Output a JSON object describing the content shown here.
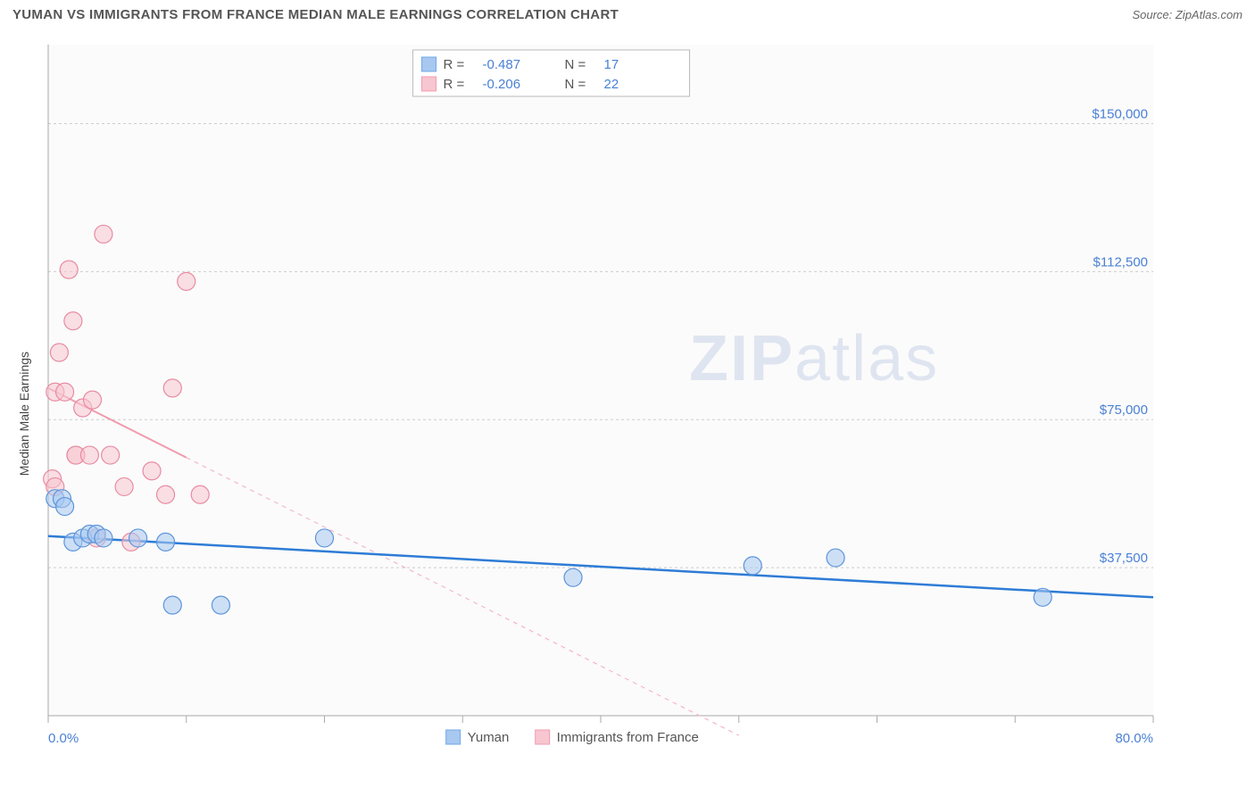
{
  "title": "YUMAN VS IMMIGRANTS FROM FRANCE MEDIAN MALE EARNINGS CORRELATION CHART",
  "source": "Source: ZipAtlas.com",
  "watermark_a": "ZIP",
  "watermark_b": "atlas",
  "chart": {
    "type": "scatter",
    "y_axis_label": "Median Male Earnings",
    "xlim": [
      0,
      80
    ],
    "ylim": [
      0,
      170000
    ],
    "x_tick_positions": [
      0,
      10,
      20,
      30,
      40,
      50,
      60,
      70,
      80
    ],
    "x_labels": {
      "min": "0.0%",
      "max": "80.0%"
    },
    "y_grid": [
      {
        "value": 37500,
        "label": "$37,500"
      },
      {
        "value": 75000,
        "label": "$75,000"
      },
      {
        "value": 112500,
        "label": "$112,500"
      },
      {
        "value": 150000,
        "label": "$150,000"
      }
    ],
    "plot_background": "#fbfbfb",
    "grid_color": "#cccccc",
    "axis_color": "#aaaaaa",
    "series": {
      "yuman": {
        "label": "Yuman",
        "color_fill": "#a8c8f0",
        "color_stroke": "#5b94db",
        "trend_color": "#2e7cd6",
        "R": "-0.487",
        "N": "17",
        "marker_radius": 10,
        "points": [
          [
            0.5,
            55000
          ],
          [
            1.0,
            55000
          ],
          [
            1.2,
            53000
          ],
          [
            1.8,
            44000
          ],
          [
            2.5,
            45000
          ],
          [
            3.0,
            46000
          ],
          [
            3.5,
            46000
          ],
          [
            4.0,
            45000
          ],
          [
            6.5,
            45000
          ],
          [
            8.5,
            44000
          ],
          [
            9.0,
            28000
          ],
          [
            12.5,
            28000
          ],
          [
            20.0,
            45000
          ],
          [
            38.0,
            35000
          ],
          [
            51.0,
            38000
          ],
          [
            57.0,
            40000
          ],
          [
            72.0,
            30000
          ]
        ],
        "trend": {
          "x1": 0,
          "y1": 45500,
          "x2": 80,
          "y2": 30000,
          "solid_until_x": 80
        }
      },
      "france": {
        "label": "Immigrants from France",
        "color_fill": "#f7c6d0",
        "color_stroke": "#e88ba2",
        "trend_color": "#f09cb0",
        "R": "-0.206",
        "N": "22",
        "marker_radius": 10,
        "points": [
          [
            0.3,
            60000
          ],
          [
            0.5,
            82000
          ],
          [
            0.5,
            58000
          ],
          [
            0.8,
            92000
          ],
          [
            1.2,
            82000
          ],
          [
            1.5,
            113000
          ],
          [
            1.8,
            100000
          ],
          [
            2.0,
            66000
          ],
          [
            2.0,
            66000
          ],
          [
            2.5,
            78000
          ],
          [
            3.0,
            66000
          ],
          [
            3.2,
            80000
          ],
          [
            3.5,
            45000
          ],
          [
            4.0,
            122000
          ],
          [
            4.5,
            66000
          ],
          [
            5.5,
            58000
          ],
          [
            6.0,
            44000
          ],
          [
            7.5,
            62000
          ],
          [
            8.5,
            56000
          ],
          [
            9.0,
            83000
          ],
          [
            10.0,
            110000
          ],
          [
            11.0,
            56000
          ]
        ],
        "trend": {
          "x1": 0,
          "y1": 83000,
          "x2": 50,
          "y2": -5000,
          "solid_until_x": 10
        }
      }
    },
    "legend_stats": {
      "R_label": "R =",
      "N_label": "N ="
    },
    "bottom_legend": {
      "a": "Yuman",
      "b": "Immigrants from France"
    }
  }
}
